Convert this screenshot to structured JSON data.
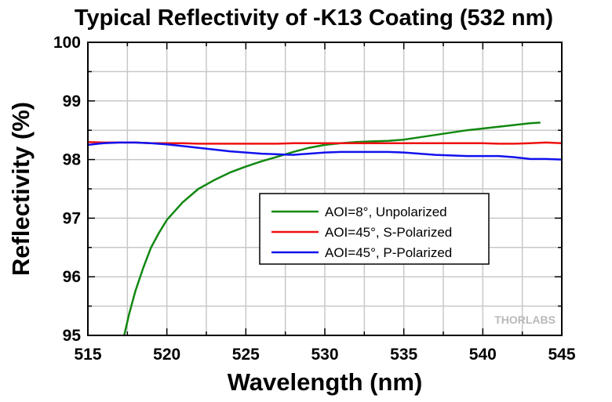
{
  "chart_data": {
    "type": "line",
    "title": "Typical Reflectivity of -K13 Coating (532 nm)",
    "xlabel": "Wavelength (nm)",
    "ylabel": "Reflectivity (%)",
    "xlim": [
      515,
      545
    ],
    "ylim": [
      95,
      100
    ],
    "x_ticks": [
      "515",
      "520",
      "525",
      "530",
      "535",
      "540",
      "545"
    ],
    "y_ticks": [
      "95",
      "96",
      "97",
      "98",
      "99",
      "100"
    ],
    "grid": true,
    "legend_position": "center-right",
    "watermark": "THORLABS",
    "series": [
      {
        "name": "AOI=8°, Unpolarized",
        "color": "#118811",
        "x": [
          517.3,
          517.6,
          518.0,
          518.5,
          519.0,
          519.5,
          520.0,
          520.5,
          521.0,
          522.0,
          523.0,
          524.0,
          525.0,
          526.0,
          527.0,
          528.0,
          529.0,
          530.0,
          531.0,
          532.0,
          533.0,
          534.0,
          535.0,
          536.0,
          537.0,
          538.0,
          539.0,
          540.0,
          541.0,
          542.0,
          543.0,
          543.6
        ],
        "y": [
          95.0,
          95.35,
          95.75,
          96.15,
          96.5,
          96.75,
          96.97,
          97.12,
          97.27,
          97.5,
          97.65,
          97.78,
          97.88,
          97.97,
          98.05,
          98.13,
          98.2,
          98.25,
          98.28,
          98.3,
          98.31,
          98.32,
          98.34,
          98.38,
          98.42,
          98.46,
          98.5,
          98.53,
          98.56,
          98.59,
          98.62,
          98.63
        ]
      },
      {
        "name": "AOI=45°, S-Polarized",
        "color": "#ee1111",
        "x": [
          515,
          516,
          517,
          518,
          519,
          520,
          521,
          522,
          523,
          524,
          525,
          526,
          527,
          528,
          529,
          530,
          531,
          532,
          533,
          534,
          535,
          536,
          537,
          538,
          539,
          540,
          541,
          542,
          543,
          544,
          545
        ],
        "y": [
          98.3,
          98.29,
          98.29,
          98.29,
          98.28,
          98.28,
          98.28,
          98.27,
          98.27,
          98.27,
          98.27,
          98.27,
          98.27,
          98.28,
          98.28,
          98.28,
          98.28,
          98.28,
          98.28,
          98.28,
          98.28,
          98.28,
          98.28,
          98.28,
          98.28,
          98.28,
          98.27,
          98.27,
          98.28,
          98.29,
          98.28
        ]
      },
      {
        "name": "AOI=45°, P-Polarized",
        "color": "#1111ee",
        "x": [
          515,
          516,
          517,
          518,
          519,
          520,
          521,
          522,
          523,
          524,
          525,
          526,
          527,
          528,
          529,
          530,
          531,
          532,
          533,
          534,
          535,
          536,
          537,
          538,
          539,
          540,
          541,
          542,
          543,
          544,
          545
        ],
        "y": [
          98.25,
          98.28,
          98.29,
          98.29,
          98.28,
          98.26,
          98.23,
          98.2,
          98.17,
          98.14,
          98.12,
          98.1,
          98.09,
          98.08,
          98.1,
          98.12,
          98.13,
          98.13,
          98.13,
          98.13,
          98.12,
          98.1,
          98.08,
          98.07,
          98.06,
          98.06,
          98.06,
          98.04,
          98.01,
          98.01,
          98.0
        ]
      }
    ]
  }
}
